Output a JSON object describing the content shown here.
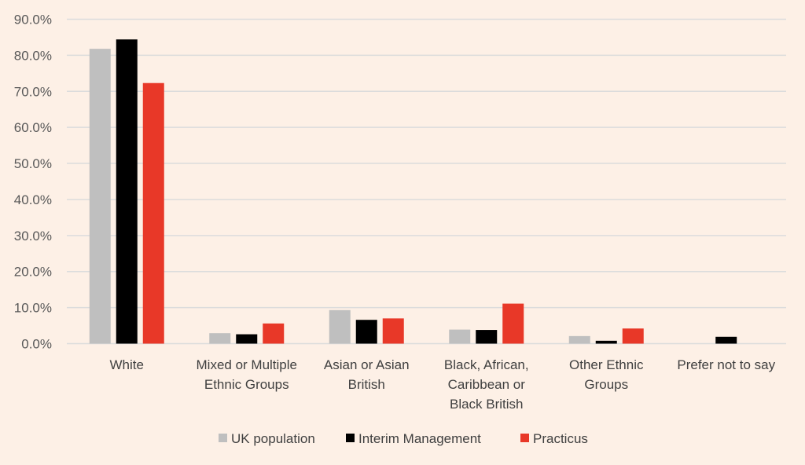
{
  "chart_data": {
    "type": "bar",
    "title": "",
    "xlabel": "",
    "ylabel": "",
    "ylim": [
      0,
      90
    ],
    "yticks": [
      "0.0%",
      "10.0%",
      "20.0%",
      "30.0%",
      "40.0%",
      "50.0%",
      "60.0%",
      "70.0%",
      "80.0%",
      "90.0%"
    ],
    "grid": true,
    "legend_position": "bottom",
    "categories": [
      [
        "White"
      ],
      [
        "Mixed or Multiple",
        "Ethnic Groups"
      ],
      [
        "Asian or Asian",
        "British"
      ],
      [
        "Black, African,",
        "Caribbean or",
        "Black British"
      ],
      [
        "Other Ethnic",
        "Groups"
      ],
      [
        "Prefer not to say"
      ]
    ],
    "series": [
      {
        "name": "UK population",
        "color": "#bfbfbf",
        "values": [
          81.8,
          2.9,
          9.3,
          3.9,
          2.1,
          null
        ]
      },
      {
        "name": "Interim Management",
        "color": "#000000",
        "values": [
          84.4,
          2.6,
          6.6,
          3.8,
          0.8,
          1.9
        ]
      },
      {
        "name": "Practicus",
        "color": "#e83828",
        "values": [
          72.3,
          5.6,
          7.0,
          11.1,
          4.2,
          null
        ]
      }
    ]
  }
}
